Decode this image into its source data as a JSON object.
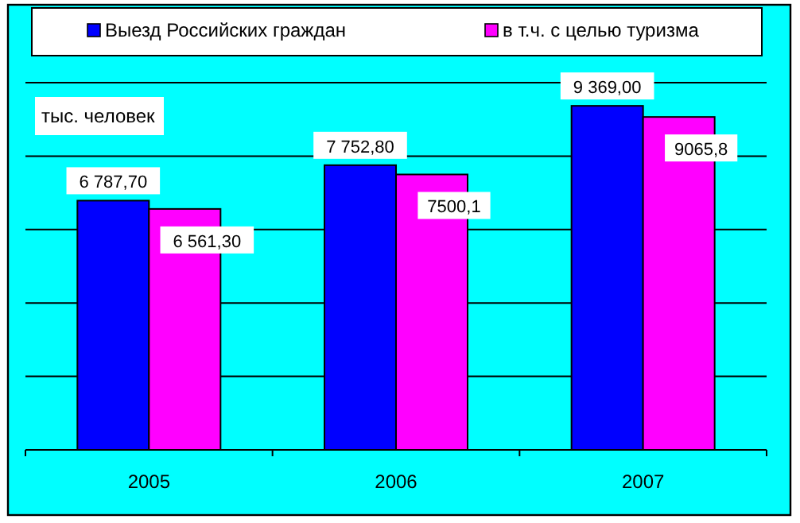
{
  "chart_data": {
    "type": "bar",
    "ylabel": "тыс. человек",
    "categories": [
      "2005",
      "2006",
      "2007"
    ],
    "series": [
      {
        "name": "Выезд Российских граждан",
        "color": "#0000ff",
        "values": [
          6787.7,
          7752.8,
          9369.0
        ],
        "value_labels": [
          "6 787,70",
          "7 752,80",
          "9 369,00"
        ]
      },
      {
        "name": "в т.ч. с целью туризма",
        "color": "#ff00ff",
        "values": [
          6561.3,
          7500.1,
          9065.8
        ],
        "value_labels": [
          "6 561,30",
          "7500,1",
          "9065,8"
        ]
      }
    ],
    "ylim": [
      0,
      10000
    ],
    "yticks": [
      {
        "value": 0,
        "label": null
      },
      {
        "value": 2000,
        "label": null
      },
      {
        "value": 4000,
        "label": null
      },
      {
        "value": 6000,
        "label": null
      },
      {
        "value": 8000,
        "label": null
      },
      {
        "value": 10000,
        "label": null
      }
    ],
    "tick_labels": "x",
    "grid": "y",
    "legend": "top"
  }
}
